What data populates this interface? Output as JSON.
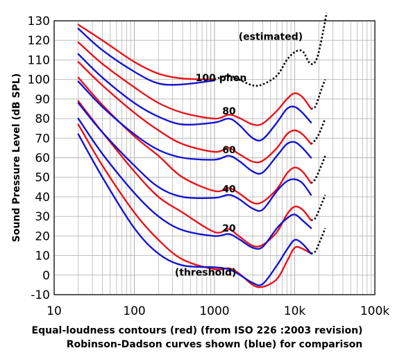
{
  "chart_data": {
    "type": "line",
    "title": "",
    "xlabel": "Equal-loudness contours (red)  (from ISO 226 :2003 revision)",
    "xlabel2": "Robinson-Dadson curves shown (blue) for comparison",
    "ylabel": "Sound Pressure Level (dB SPL)",
    "xscale": "log",
    "xlim": [
      10,
      100000
    ],
    "ylim": [
      -10,
      130
    ],
    "x_ticks": [
      10,
      100,
      1000,
      10000,
      100000
    ],
    "x_tick_labels": [
      "10",
      "100",
      "1000",
      "10k",
      "100k"
    ],
    "y_ticks": [
      -10,
      0,
      10,
      20,
      30,
      40,
      50,
      60,
      70,
      80,
      90,
      100,
      110,
      120,
      130
    ],
    "grid": true,
    "colors": {
      "iso": "#e8141a",
      "robinson": "#1414d2",
      "estimated": "#000000"
    },
    "annotations": [
      {
        "text": "(estimated)",
        "x": 2000,
        "y": 122
      },
      {
        "text": "100 phon",
        "x": 580,
        "y": 101
      },
      {
        "text": "80",
        "x": 1250,
        "y": 84
      },
      {
        "text": "60",
        "x": 1250,
        "y": 64
      },
      {
        "text": "40",
        "x": 1250,
        "y": 44
      },
      {
        "text": "20",
        "x": 1250,
        "y": 24
      },
      {
        "text": "(threshold)",
        "x": 320,
        "y": 1.5
      }
    ],
    "series": [
      {
        "group": "iso",
        "x": [
          20,
          40,
          100,
          200,
          400,
          1000
        ],
        "y": [
          128.0,
          120.0,
          109.0,
          103.0,
          100.5,
          100.0
        ]
      },
      {
        "group": "iso",
        "x": [
          20,
          40,
          100,
          200,
          400,
          1000,
          1500,
          2000,
          3000,
          4000,
          6000,
          8000,
          10000,
          12500,
          16000
        ],
        "y": [
          119.0,
          108.0,
          96.0,
          88.0,
          83.0,
          80.0,
          82.0,
          80.5,
          77.0,
          77.5,
          84.0,
          90.0,
          93.0,
          91.0,
          85.0
        ]
      },
      {
        "group": "iso",
        "x": [
          20,
          40,
          100,
          200,
          400,
          1000,
          1500,
          2000,
          3000,
          4000,
          6000,
          8000,
          10000,
          12500,
          16000
        ],
        "y": [
          109.0,
          97.0,
          83.0,
          74.0,
          67.0,
          63.0,
          65.0,
          62.0,
          58.0,
          58.5,
          65.0,
          72.0,
          74.0,
          72.0,
          67.0
        ]
      },
      {
        "group": "iso",
        "x": [
          20,
          40,
          100,
          200,
          400,
          1000,
          1500,
          2000,
          3000,
          4000,
          6000,
          8000,
          10000,
          12500,
          16000
        ],
        "y": [
          101.0,
          87.0,
          71.0,
          61.0,
          50.0,
          43.0,
          44.5,
          42.0,
          37.0,
          37.5,
          44.0,
          52.0,
          55.0,
          53.0,
          47.0
        ]
      },
      {
        "group": "iso",
        "x": [
          20,
          40,
          100,
          200,
          400,
          1000,
          1500,
          2000,
          3000,
          4000,
          6000,
          8000,
          10000,
          12500,
          16000
        ],
        "y": [
          89.0,
          73.0,
          53.0,
          40.0,
          32.0,
          22.0,
          23.5,
          20.0,
          15.0,
          15.5,
          22.0,
          31.0,
          35.0,
          33.5,
          28.0
        ]
      },
      {
        "group": "iso",
        "x": [
          20,
          40,
          100,
          200,
          400,
          1000,
          1500,
          2000,
          3000,
          4000,
          6000,
          8000,
          10000,
          12500,
          16000
        ],
        "y": [
          77.0,
          56.0,
          32.0,
          18.0,
          8.0,
          3.0,
          3.5,
          1.0,
          -5.0,
          -6.0,
          -2.0,
          7.0,
          14.0,
          13.5,
          11.0
        ]
      },
      {
        "group": "robinson",
        "x": [
          20,
          40,
          100,
          200,
          400,
          1000
        ],
        "y": [
          126.0,
          115.0,
          104.0,
          98.0,
          97.5,
          99.5
        ]
      },
      {
        "group": "robinson",
        "x": [
          20,
          40,
          100,
          200,
          400,
          1000,
          1500,
          2000,
          3000,
          4000,
          6000,
          8000,
          10000,
          12500,
          16000
        ],
        "y": [
          113.0,
          101.0,
          88.0,
          81.0,
          77.0,
          78.0,
          80.0,
          77.0,
          70.0,
          69.5,
          78.0,
          85.0,
          86.0,
          83.0,
          78.0
        ]
      },
      {
        "group": "robinson",
        "x": [
          20,
          40,
          100,
          200,
          400,
          1000,
          1500,
          2000,
          3000,
          4000,
          6000,
          8000,
          10000,
          12500,
          16000
        ],
        "y": [
          99.0,
          86.0,
          72.0,
          64.0,
          60.0,
          59.0,
          61.0,
          58.5,
          53.0,
          52.5,
          61.0,
          67.0,
          68.0,
          65.0,
          60.0
        ]
      },
      {
        "group": "robinson",
        "x": [
          20,
          40,
          100,
          200,
          400,
          1000,
          1500,
          2000,
          3000,
          4000,
          6000,
          8000,
          10000,
          12500,
          16000
        ],
        "y": [
          88.0,
          73.0,
          56.0,
          45.0,
          40.0,
          39.5,
          41.0,
          39.0,
          34.0,
          33.5,
          43.0,
          48.0,
          49.0,
          47.0,
          41.0
        ]
      },
      {
        "group": "robinson",
        "x": [
          20,
          40,
          100,
          200,
          400,
          1000,
          1500,
          2000,
          3000,
          4000,
          6000,
          8000,
          10000,
          12500,
          16000
        ],
        "y": [
          80.0,
          62.0,
          42.0,
          30.0,
          23.0,
          20.0,
          21.0,
          18.5,
          14.0,
          14.5,
          24.0,
          29.0,
          31.0,
          28.0,
          24.0
        ]
      },
      {
        "group": "robinson",
        "x": [
          20,
          40,
          100,
          200,
          400,
          1000,
          1500,
          2000,
          3000,
          4000,
          6000,
          8000,
          10000,
          12500,
          16000
        ],
        "y": [
          72.0,
          50.0,
          24.0,
          11.0,
          5.0,
          4.0,
          3.0,
          0.5,
          -4.0,
          -4.5,
          5.0,
          13.0,
          18.0,
          16.0,
          11.0
        ]
      },
      {
        "group": "estimated",
        "x": [
          1000,
          1500,
          2000,
          3000,
          4000,
          6000,
          8000,
          10000,
          12500,
          15000,
          17000,
          19000,
          21000,
          23000,
          25000
        ],
        "y": [
          100.0,
          102.0,
          100.0,
          97.0,
          97.5,
          102.0,
          110.0,
          114.0,
          114.5,
          109.0,
          108.0,
          111.0,
          118.0,
          126.0,
          134.0
        ]
      },
      {
        "group": "estimated",
        "x": [
          16000,
          18000,
          20000,
          22000,
          24000
        ],
        "y": [
          85.0,
          86.0,
          91.0,
          96.0,
          100.0
        ]
      },
      {
        "group": "estimated",
        "x": [
          16000,
          18000,
          20000,
          22000,
          24000
        ],
        "y": [
          67.0,
          69.0,
          72.0,
          76.0,
          80.0
        ]
      },
      {
        "group": "estimated",
        "x": [
          16000,
          18000,
          20000,
          22000,
          24000
        ],
        "y": [
          47.0,
          49.0,
          53.0,
          57.0,
          61.0
        ]
      },
      {
        "group": "estimated",
        "x": [
          16000,
          18000,
          20000,
          22000,
          24000
        ],
        "y": [
          28.0,
          29.0,
          33.0,
          37.0,
          41.0
        ]
      },
      {
        "group": "estimated",
        "x": [
          16000,
          18000,
          20000,
          22000,
          24000
        ],
        "y": [
          11.0,
          12.0,
          16.0,
          20.0,
          24.0
        ]
      }
    ]
  }
}
